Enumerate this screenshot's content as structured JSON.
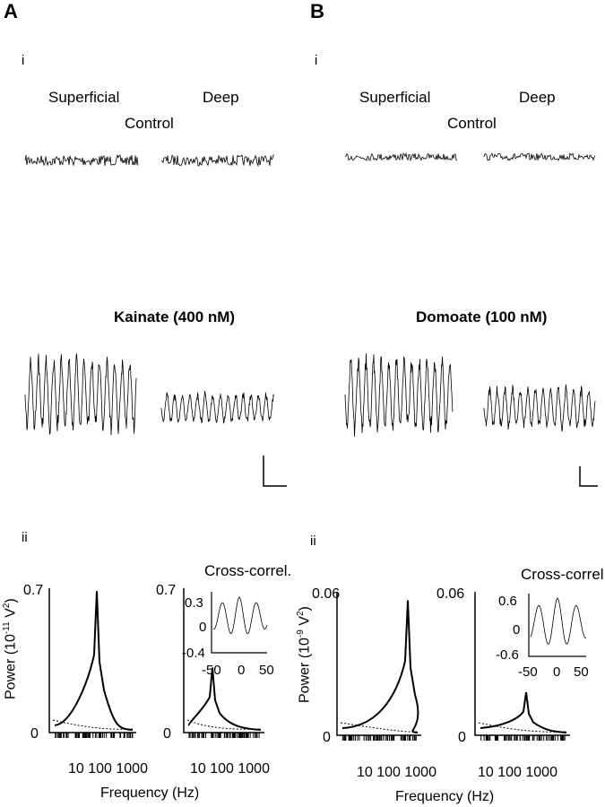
{
  "panels": {
    "A": {
      "letter": "A",
      "sub_i": "i",
      "sub_ii": "ii",
      "superficial": "Superficial",
      "deep": "Deep",
      "control": "Control",
      "drug": "Kainate (400 nM)",
      "y_max": "0.7",
      "y_zero": "0",
      "inset_title": "Cross-correl.",
      "inset_y_top": "0.3",
      "inset_y_mid": "0",
      "inset_y_bottom": "-0.4",
      "inset_x": [
        "-50",
        "0",
        "50"
      ],
      "x_ticks": "10 100 1000",
      "xlabel": "Frequency (Hz)",
      "ylabel_main": "Power (10",
      "ylabel_exp": "-11",
      "ylabel_unit": " V",
      "ylabel_sq": "2",
      "ylabel_close": ")"
    },
    "B": {
      "letter": "B",
      "sub_i": "i",
      "sub_ii": "ii",
      "superficial": "Superficial",
      "deep": "Deep",
      "control": "Control",
      "drug": "Domoate (100 nM)",
      "y_max": "0.06",
      "y_zero": "0",
      "inset_title": "Cross-correl.",
      "inset_y_top": "0.6",
      "inset_y_mid": "0",
      "inset_y_bottom": "-0.6",
      "inset_x": [
        "-50",
        "0",
        "50"
      ],
      "x_ticks": "10 100 1000",
      "xlabel": "Frequency (Hz)",
      "ylabel_main": "Power (10",
      "ylabel_exp": "-9",
      "ylabel_unit": " V",
      "ylabel_sq": "2",
      "ylabel_close": ")"
    }
  }
}
